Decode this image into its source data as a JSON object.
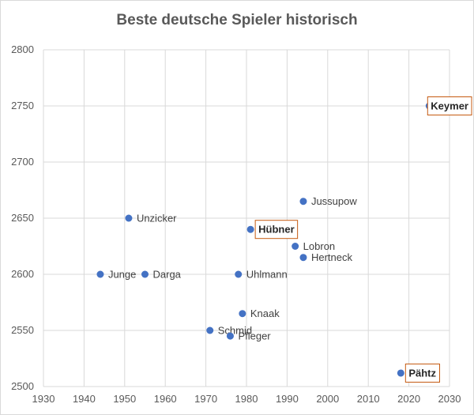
{
  "chart_data": {
    "type": "scatter",
    "title": "Beste deutsche Spieler historisch",
    "xlabel": "",
    "ylabel": "",
    "xlim": [
      1930,
      2030
    ],
    "ylim": [
      2500,
      2800
    ],
    "xticks": [
      1930,
      1940,
      1950,
      1960,
      1970,
      1980,
      1990,
      2000,
      2010,
      2020,
      2030
    ],
    "yticks": [
      2500,
      2550,
      2600,
      2650,
      2700,
      2750,
      2800
    ],
    "grid": true,
    "legend": "none",
    "marker_color": "#4472c4",
    "highlight_border_color": "#c55a11",
    "points": [
      {
        "label": "Keymer",
        "x": 2025,
        "y": 2750,
        "highlight": true
      },
      {
        "label": "Jussupow",
        "x": 1994,
        "y": 2665,
        "highlight": false
      },
      {
        "label": "Unzicker",
        "x": 1951,
        "y": 2650,
        "highlight": false
      },
      {
        "label": "Hübner",
        "x": 1981,
        "y": 2640,
        "highlight": true
      },
      {
        "label": "Lobron",
        "x": 1992,
        "y": 2625,
        "highlight": false
      },
      {
        "label": "Hertneck",
        "x": 1994,
        "y": 2615,
        "highlight": false
      },
      {
        "label": "Junge",
        "x": 1944,
        "y": 2600,
        "highlight": false
      },
      {
        "label": "Darga",
        "x": 1955,
        "y": 2600,
        "highlight": false
      },
      {
        "label": "Uhlmann",
        "x": 1978,
        "y": 2600,
        "highlight": false
      },
      {
        "label": "Knaak",
        "x": 1979,
        "y": 2565,
        "highlight": false
      },
      {
        "label": "Schmid",
        "x": 1971,
        "y": 2550,
        "highlight": false
      },
      {
        "label": "Pfleger",
        "x": 1976,
        "y": 2545,
        "highlight": false
      },
      {
        "label": "Pähtz",
        "x": 2018,
        "y": 2512,
        "highlight": true
      }
    ]
  }
}
